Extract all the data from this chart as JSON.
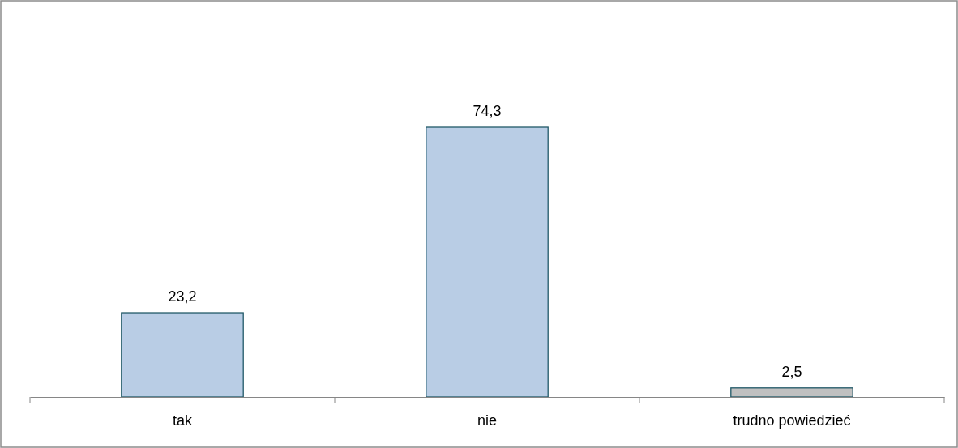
{
  "chart_data": {
    "type": "bar",
    "categories": [
      "tak",
      "nie",
      "trudno powiedzieć"
    ],
    "values": [
      23.2,
      74.3,
      2.5
    ],
    "colors": [
      "#b9cde5",
      "#b9cde5",
      "#c0c0c0"
    ],
    "value_labels": [
      "23,2",
      "74,3",
      "2,5"
    ]
  }
}
